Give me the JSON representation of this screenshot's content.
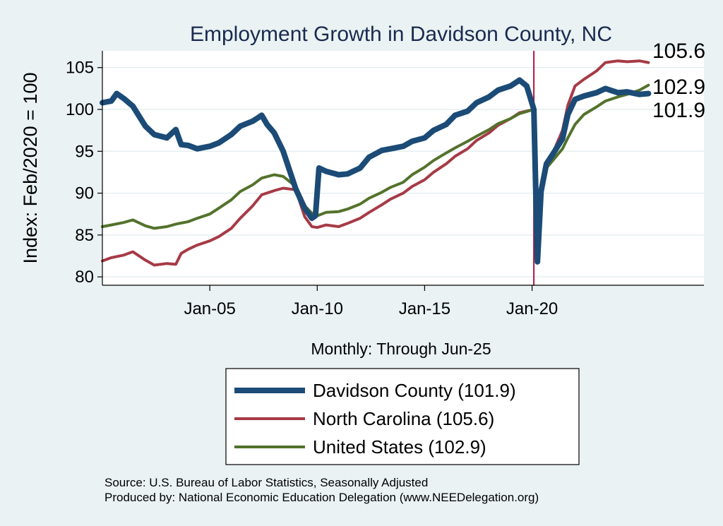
{
  "chart_data": {
    "type": "line",
    "title": "Employment Growth in Davidson  County, NC",
    "ylabel": "Index: Feb/2020 = 100",
    "xlabel": "Monthly: Through Jun-25",
    "ylim": [
      79,
      107
    ],
    "yticks": [
      80,
      85,
      90,
      95,
      100,
      105
    ],
    "xlim": [
      "2000-01",
      "2028-01"
    ],
    "xticks": [
      {
        "label": "Jan-05",
        "x": "2005-01"
      },
      {
        "label": "Jan-10",
        "x": "2010-01"
      },
      {
        "label": "Jan-15",
        "x": "2015-01"
      },
      {
        "label": "Jan-20",
        "x": "2020-01"
      }
    ],
    "reference_line": {
      "x": "2020-02",
      "color": "#b4163f"
    },
    "grid": true,
    "legend_position": "bottom",
    "series": [
      {
        "name": "Davidson  County (101.9)",
        "color": "#1b4b76",
        "end_label": "101.9",
        "points": [
          [
            "2000-01",
            100.8
          ],
          [
            "2000-06",
            101.0
          ],
          [
            "2000-09",
            101.9
          ],
          [
            "2001-01",
            101.3
          ],
          [
            "2001-06",
            100.4
          ],
          [
            "2002-01",
            98.0
          ],
          [
            "2002-06",
            97.0
          ],
          [
            "2003-01",
            96.6
          ],
          [
            "2003-06",
            97.6
          ],
          [
            "2003-09",
            95.8
          ],
          [
            "2004-01",
            95.7
          ],
          [
            "2004-06",
            95.3
          ],
          [
            "2005-01",
            95.6
          ],
          [
            "2005-06",
            96.0
          ],
          [
            "2006-01",
            97.0
          ],
          [
            "2006-06",
            98.0
          ],
          [
            "2007-01",
            98.6
          ],
          [
            "2007-06",
            99.3
          ],
          [
            "2007-09",
            98.2
          ],
          [
            "2008-01",
            97.2
          ],
          [
            "2008-06",
            95.0
          ],
          [
            "2009-01",
            90.5
          ],
          [
            "2009-06",
            88.2
          ],
          [
            "2009-10",
            87.0
          ],
          [
            "2009-12",
            87.3
          ],
          [
            "2010-02",
            93.0
          ],
          [
            "2010-06",
            92.6
          ],
          [
            "2011-01",
            92.2
          ],
          [
            "2011-06",
            92.3
          ],
          [
            "2012-01",
            93.0
          ],
          [
            "2012-06",
            94.3
          ],
          [
            "2013-01",
            95.1
          ],
          [
            "2013-06",
            95.3
          ],
          [
            "2014-01",
            95.6
          ],
          [
            "2014-06",
            96.2
          ],
          [
            "2015-01",
            96.6
          ],
          [
            "2015-06",
            97.5
          ],
          [
            "2016-01",
            98.2
          ],
          [
            "2016-06",
            99.3
          ],
          [
            "2017-01",
            99.8
          ],
          [
            "2017-06",
            100.8
          ],
          [
            "2018-01",
            101.5
          ],
          [
            "2018-06",
            102.3
          ],
          [
            "2019-01",
            102.8
          ],
          [
            "2019-06",
            103.5
          ],
          [
            "2019-10",
            102.8
          ],
          [
            "2020-02",
            100.0
          ],
          [
            "2020-04",
            81.8
          ],
          [
            "2020-06",
            90.2
          ],
          [
            "2020-09",
            93.5
          ],
          [
            "2021-01",
            94.8
          ],
          [
            "2021-06",
            96.5
          ],
          [
            "2021-09",
            99.4
          ],
          [
            "2022-01",
            101.2
          ],
          [
            "2022-06",
            101.6
          ],
          [
            "2023-01",
            102.0
          ],
          [
            "2023-06",
            102.5
          ],
          [
            "2024-01",
            102.0
          ],
          [
            "2024-06",
            102.1
          ],
          [
            "2025-01",
            101.8
          ],
          [
            "2025-06",
            101.9
          ]
        ]
      },
      {
        "name": "North Carolina (105.6)",
        "color": "#a63a46",
        "end_label": "105.6",
        "points": [
          [
            "2000-01",
            81.9
          ],
          [
            "2000-06",
            82.3
          ],
          [
            "2001-01",
            82.6
          ],
          [
            "2001-06",
            83.0
          ],
          [
            "2002-01",
            82.0
          ],
          [
            "2002-06",
            81.4
          ],
          [
            "2003-01",
            81.6
          ],
          [
            "2003-06",
            81.5
          ],
          [
            "2003-09",
            82.8
          ],
          [
            "2004-01",
            83.3
          ],
          [
            "2004-06",
            83.8
          ],
          [
            "2005-01",
            84.3
          ],
          [
            "2005-06",
            84.8
          ],
          [
            "2006-01",
            85.8
          ],
          [
            "2006-06",
            87.0
          ],
          [
            "2007-01",
            88.5
          ],
          [
            "2007-06",
            89.8
          ],
          [
            "2008-01",
            90.3
          ],
          [
            "2008-06",
            90.6
          ],
          [
            "2009-01",
            90.4
          ],
          [
            "2009-06",
            87.2
          ],
          [
            "2009-10",
            86.0
          ],
          [
            "2010-01",
            85.9
          ],
          [
            "2010-06",
            86.2
          ],
          [
            "2011-01",
            86.0
          ],
          [
            "2011-06",
            86.4
          ],
          [
            "2012-01",
            87.0
          ],
          [
            "2012-06",
            87.7
          ],
          [
            "2013-01",
            88.6
          ],
          [
            "2013-06",
            89.3
          ],
          [
            "2014-01",
            90.0
          ],
          [
            "2014-06",
            90.8
          ],
          [
            "2015-01",
            91.6
          ],
          [
            "2015-06",
            92.5
          ],
          [
            "2016-01",
            93.5
          ],
          [
            "2016-06",
            94.4
          ],
          [
            "2017-01",
            95.3
          ],
          [
            "2017-06",
            96.3
          ],
          [
            "2018-01",
            97.2
          ],
          [
            "2018-06",
            98.1
          ],
          [
            "2019-01",
            98.9
          ],
          [
            "2019-06",
            99.6
          ],
          [
            "2020-02",
            100.0
          ],
          [
            "2020-04",
            83.4
          ],
          [
            "2020-06",
            89.5
          ],
          [
            "2020-09",
            93.8
          ],
          [
            "2021-01",
            95.0
          ],
          [
            "2021-06",
            97.5
          ],
          [
            "2021-09",
            100.5
          ],
          [
            "2022-01",
            102.8
          ],
          [
            "2022-06",
            103.6
          ],
          [
            "2023-01",
            104.6
          ],
          [
            "2023-06",
            105.6
          ],
          [
            "2024-01",
            105.8
          ],
          [
            "2024-06",
            105.7
          ],
          [
            "2025-01",
            105.8
          ],
          [
            "2025-06",
            105.6
          ]
        ]
      },
      {
        "name": "United States (102.9)",
        "color": "#54722c",
        "end_label": "102.9",
        "points": [
          [
            "2000-01",
            86.0
          ],
          [
            "2000-06",
            86.2
          ],
          [
            "2001-01",
            86.5
          ],
          [
            "2001-06",
            86.8
          ],
          [
            "2002-01",
            86.1
          ],
          [
            "2002-06",
            85.8
          ],
          [
            "2003-01",
            86.0
          ],
          [
            "2003-06",
            86.3
          ],
          [
            "2004-01",
            86.6
          ],
          [
            "2004-06",
            87.0
          ],
          [
            "2005-01",
            87.5
          ],
          [
            "2005-06",
            88.2
          ],
          [
            "2006-01",
            89.2
          ],
          [
            "2006-06",
            90.2
          ],
          [
            "2007-01",
            91.0
          ],
          [
            "2007-06",
            91.8
          ],
          [
            "2008-01",
            92.2
          ],
          [
            "2008-06",
            92.0
          ],
          [
            "2009-01",
            90.8
          ],
          [
            "2009-06",
            88.5
          ],
          [
            "2009-10",
            87.6
          ],
          [
            "2010-01",
            87.3
          ],
          [
            "2010-06",
            87.7
          ],
          [
            "2011-01",
            87.8
          ],
          [
            "2011-06",
            88.1
          ],
          [
            "2012-01",
            88.7
          ],
          [
            "2012-06",
            89.4
          ],
          [
            "2013-01",
            90.1
          ],
          [
            "2013-06",
            90.7
          ],
          [
            "2014-01",
            91.3
          ],
          [
            "2014-06",
            92.2
          ],
          [
            "2015-01",
            93.1
          ],
          [
            "2015-06",
            93.9
          ],
          [
            "2016-01",
            94.8
          ],
          [
            "2016-06",
            95.4
          ],
          [
            "2017-01",
            96.2
          ],
          [
            "2017-06",
            96.8
          ],
          [
            "2018-01",
            97.6
          ],
          [
            "2018-06",
            98.3
          ],
          [
            "2019-01",
            98.9
          ],
          [
            "2019-06",
            99.5
          ],
          [
            "2020-02",
            100.0
          ],
          [
            "2020-04",
            85.6
          ],
          [
            "2020-06",
            90.5
          ],
          [
            "2020-09",
            93.0
          ],
          [
            "2021-01",
            94.0
          ],
          [
            "2021-06",
            95.3
          ],
          [
            "2021-09",
            96.6
          ],
          [
            "2022-01",
            98.2
          ],
          [
            "2022-06",
            99.4
          ],
          [
            "2023-01",
            100.3
          ],
          [
            "2023-06",
            101.0
          ],
          [
            "2024-01",
            101.5
          ],
          [
            "2024-06",
            101.8
          ],
          [
            "2025-01",
            102.3
          ],
          [
            "2025-06",
            102.9
          ]
        ]
      }
    ],
    "notes": [
      "Source: U.S. Bureau of Labor Statistics, Seasonally Adjusted",
      "Produced by: National Economic Education Delegation (www.NEEDelegation.org)"
    ]
  }
}
